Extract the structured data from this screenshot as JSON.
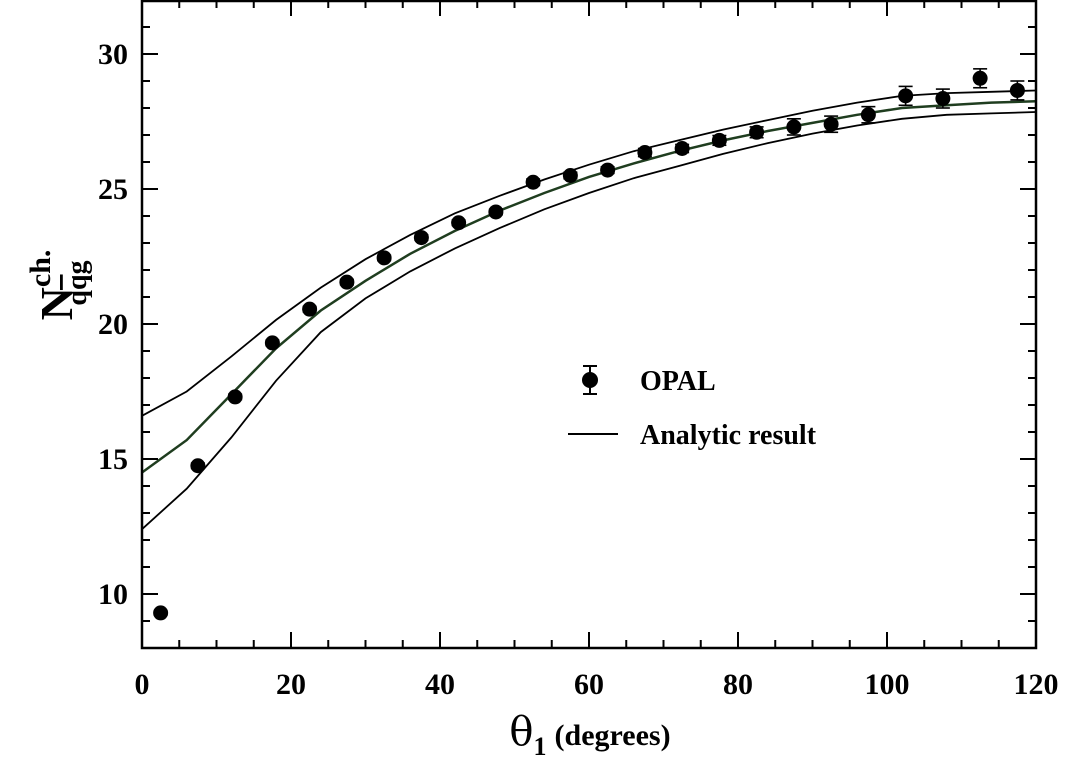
{
  "chart_data": {
    "type": "scatter",
    "xlim": [
      0,
      120
    ],
    "ylim": [
      8,
      32
    ],
    "x_ticks": [
      0,
      20,
      40,
      60,
      80,
      100,
      120
    ],
    "y_ticks": [
      10,
      15,
      20,
      25,
      30
    ],
    "xlabel_symbol": "θ",
    "xlabel_sub": "1",
    "xlabel_rest": "(degrees)",
    "ylabel_main": "N",
    "ylabel_sup": "ch.",
    "ylabel_sub_q1": "q",
    "ylabel_sub_q2": "q",
    "ylabel_sub_g": "g",
    "grid": false,
    "legend_position": "center-right",
    "series": [
      {
        "name": "OPAL",
        "kind": "points-with-errors",
        "x": [
          2.5,
          7.5,
          12.5,
          17.5,
          22.5,
          27.5,
          32.5,
          37.5,
          42.5,
          47.5,
          52.5,
          57.5,
          62.5,
          67.5,
          72.5,
          77.5,
          82.5,
          87.5,
          92.5,
          97.5,
          102.5,
          107.5,
          112.5,
          117.5
        ],
        "y": [
          9.3,
          14.75,
          17.3,
          19.3,
          20.55,
          21.55,
          22.45,
          23.2,
          23.75,
          24.15,
          25.25,
          25.5,
          25.7,
          26.35,
          26.5,
          26.8,
          27.1,
          27.3,
          27.4,
          27.75,
          28.45,
          28.35,
          29.1,
          28.65
        ],
        "yerr": [
          0.08,
          0.1,
          0.1,
          0.1,
          0.1,
          0.1,
          0.1,
          0.1,
          0.1,
          0.1,
          0.12,
          0.12,
          0.12,
          0.15,
          0.15,
          0.18,
          0.2,
          0.3,
          0.3,
          0.3,
          0.35,
          0.35,
          0.35,
          0.35
        ]
      },
      {
        "name": "Analytic result",
        "kind": "line",
        "x": [
          0,
          6,
          12,
          18,
          24,
          30,
          36,
          42,
          48,
          54,
          60,
          66,
          72,
          78,
          84,
          90,
          96,
          102,
          108,
          114,
          120
        ],
        "y": [
          14.5,
          15.7,
          17.4,
          19.1,
          20.5,
          21.6,
          22.6,
          23.45,
          24.2,
          24.85,
          25.45,
          25.95,
          26.4,
          26.8,
          27.15,
          27.45,
          27.75,
          28.0,
          28.1,
          28.2,
          28.25
        ]
      },
      {
        "kind": "band-upper",
        "x": [
          0,
          6,
          12,
          18,
          24,
          30,
          36,
          42,
          48,
          54,
          60,
          66,
          72,
          78,
          84,
          90,
          96,
          102,
          108,
          114,
          120
        ],
        "y": [
          16.6,
          17.5,
          18.8,
          20.15,
          21.35,
          22.4,
          23.3,
          24.1,
          24.75,
          25.35,
          25.9,
          26.4,
          26.8,
          27.2,
          27.55,
          27.9,
          28.2,
          28.45,
          28.55,
          28.6,
          28.65
        ]
      },
      {
        "kind": "band-lower",
        "x": [
          0,
          6,
          12,
          18,
          24,
          30,
          36,
          42,
          48,
          54,
          60,
          66,
          72,
          78,
          84,
          90,
          96,
          102,
          108,
          114,
          120
        ],
        "y": [
          12.4,
          13.9,
          15.8,
          17.9,
          19.7,
          20.95,
          21.95,
          22.8,
          23.55,
          24.25,
          24.85,
          25.4,
          25.85,
          26.3,
          26.7,
          27.05,
          27.35,
          27.6,
          27.75,
          27.8,
          27.85
        ]
      }
    ],
    "line_color": "#000000",
    "center_line_color": "#1f3d1f",
    "marker_color": "#000000"
  }
}
